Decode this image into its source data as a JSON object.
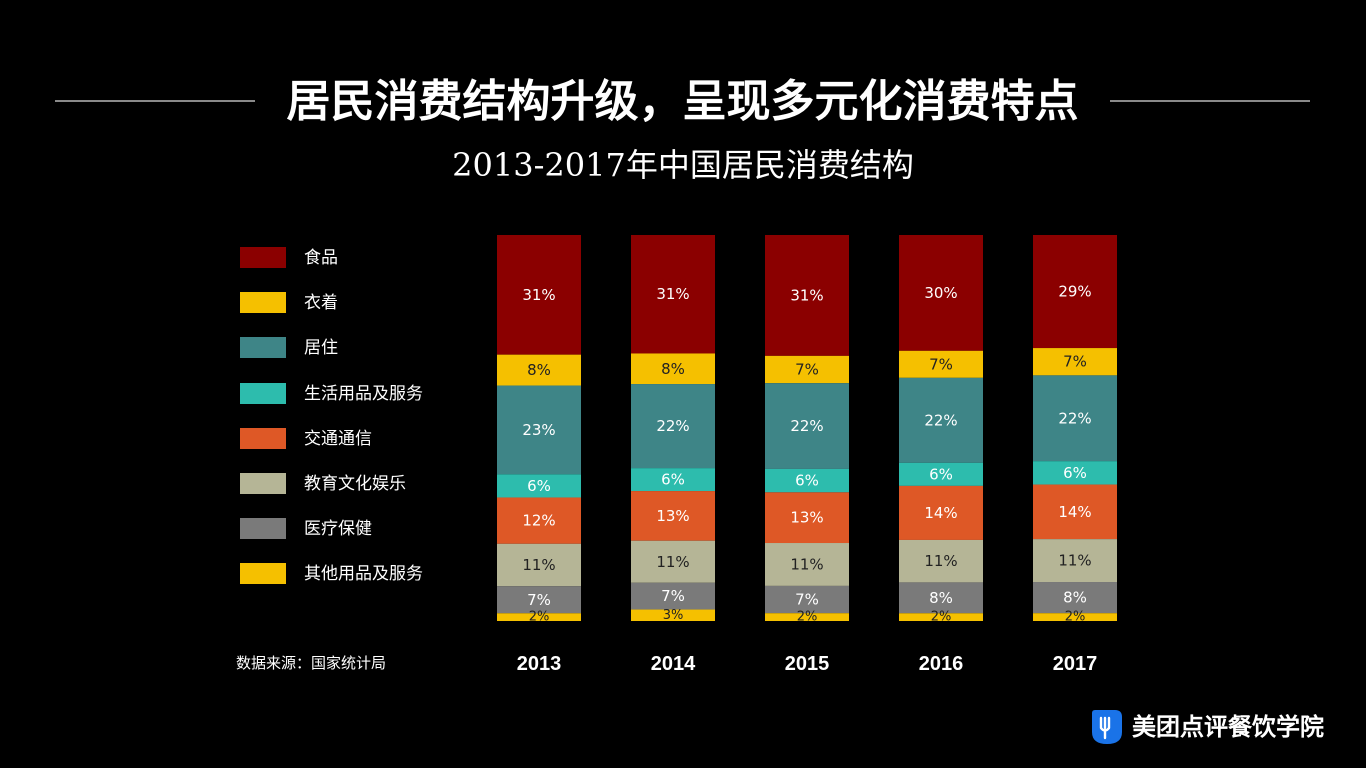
{
  "header": {
    "title": "居民消费结构升级，呈现多元化消费特点"
  },
  "source_note": "数据来源：国家统计局",
  "brand": {
    "name": "美团点评餐饮学院",
    "icon": "meituan-logo-icon",
    "icon_color": "#1a73e8"
  },
  "chart_data": {
    "type": "bar",
    "stacked": true,
    "title": "2013-2017年中国居民消费结构",
    "categories": [
      "2013",
      "2014",
      "2015",
      "2016",
      "2017"
    ],
    "value_suffix": "%",
    "legend_position": "left",
    "ylim": [
      0,
      100
    ],
    "series": [
      {
        "name": "食品",
        "color": "#8b0000",
        "label_color": "#ffffff",
        "values": [
          31,
          31,
          31,
          30,
          29
        ]
      },
      {
        "name": "衣着",
        "color": "#f5c000",
        "label_color": "#222222",
        "values": [
          8,
          8,
          7,
          7,
          7
        ]
      },
      {
        "name": "居住",
        "color": "#3e8587",
        "label_color": "#ffffff",
        "values": [
          23,
          22,
          22,
          22,
          22
        ]
      },
      {
        "name": "生活用品及服务",
        "color": "#2dbcad",
        "label_color": "#ffffff",
        "values": [
          6,
          6,
          6,
          6,
          6
        ]
      },
      {
        "name": "交通通信",
        "color": "#de5826",
        "label_color": "#ffffff",
        "values": [
          12,
          13,
          13,
          14,
          14
        ]
      },
      {
        "name": "教育文化娱乐",
        "color": "#b5b596",
        "label_color": "#222222",
        "values": [
          11,
          11,
          11,
          11,
          11
        ]
      },
      {
        "name": "医疗保健",
        "color": "#7a7a7a",
        "label_color": "#ffffff",
        "values": [
          7,
          7,
          7,
          8,
          8
        ]
      },
      {
        "name": "其他用品及服务",
        "color": "#f5c000",
        "label_color": "#222222",
        "values": [
          2,
          3,
          2,
          2,
          2
        ]
      }
    ]
  }
}
